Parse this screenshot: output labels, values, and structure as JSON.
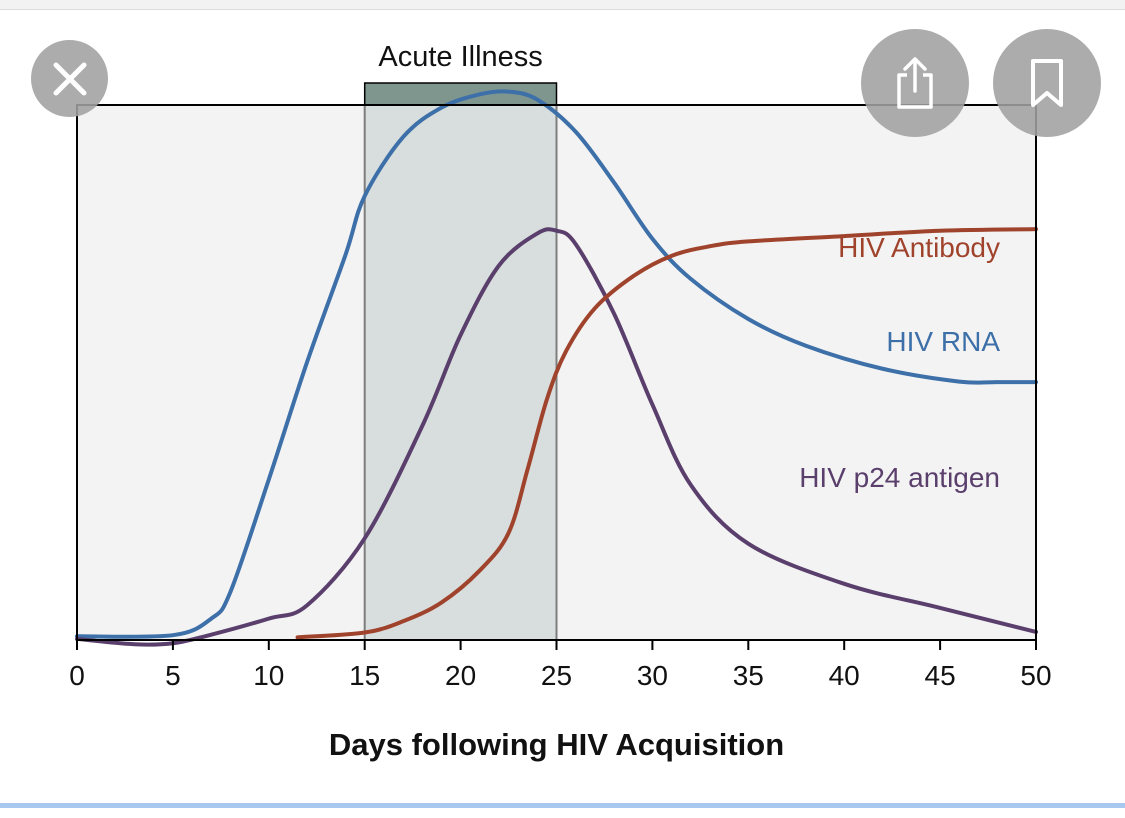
{
  "chart_data": {
    "type": "line",
    "title": "",
    "xlabel": "Days following HIV Acquisition",
    "ylabel": "",
    "xlim": [
      0,
      50
    ],
    "ylim": [
      0,
      100
    ],
    "x_ticks": [
      0,
      5,
      10,
      15,
      20,
      25,
      30,
      35,
      40,
      45,
      50
    ],
    "y_ticks_shown": false,
    "grid": false,
    "shaded_region": {
      "label": "Acute Illness",
      "x_start": 15,
      "x_end": 25
    },
    "series": [
      {
        "name": "HIV RNA",
        "color": "#3d6fa8",
        "x": [
          0,
          5,
          7,
          8,
          10,
          12,
          14,
          15,
          17,
          19,
          21,
          22.5,
          24,
          26,
          28,
          30,
          32,
          35,
          38,
          42,
          46,
          48,
          50
        ],
        "y": [
          0.7,
          0.9,
          4,
          9,
          30,
          52,
          72,
          83,
          94,
          99.5,
          102,
          102.5,
          101,
          95,
          85.5,
          75,
          67.5,
          60,
          55,
          50.7,
          48.3,
          48.2,
          48.2
        ]
      },
      {
        "name": "HIV p24 antigen",
        "color": "#5a3f6c",
        "x": [
          0,
          3,
          5,
          7,
          10,
          12,
          15,
          18,
          20,
          22,
          24,
          25,
          26,
          28,
          30,
          32,
          35,
          40,
          45,
          50
        ],
        "y": [
          0.2,
          -0.8,
          -0.6,
          1,
          4,
          6.5,
          19,
          40,
          57,
          70,
          76,
          76.5,
          74,
          61,
          44,
          29,
          18,
          10.5,
          6,
          1.5
        ]
      },
      {
        "name": "HIV Antibody",
        "color": "#a0432c",
        "x": [
          11.5,
          15,
          17,
          19,
          21,
          22.5,
          23.5,
          24.5,
          25.5,
          27,
          29,
          31,
          33,
          35,
          40,
          45,
          50
        ],
        "y": [
          0.5,
          1.4,
          3.5,
          7,
          13,
          20,
          32,
          45,
          54,
          62,
          68,
          71.8,
          73.6,
          74.5,
          75.5,
          76.5,
          76.8
        ]
      }
    ]
  },
  "ui": {
    "close_icon": "close-icon",
    "share_icon": "share-icon",
    "bookmark_icon": "bookmark-icon"
  }
}
